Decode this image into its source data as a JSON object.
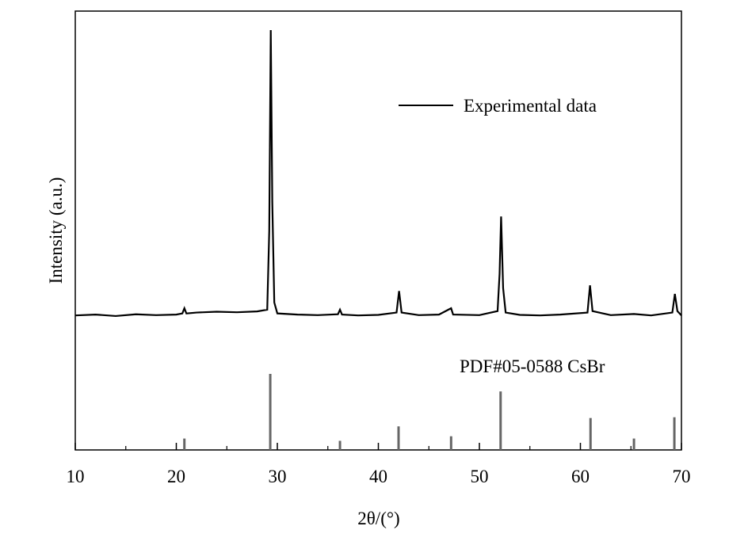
{
  "chart_data": {
    "type": "line",
    "xlabel": "2θ/(°)",
    "ylabel": "Intensity (a.u.)",
    "xlim": [
      10,
      70
    ],
    "xticks": [
      10,
      20,
      30,
      40,
      50,
      60,
      70
    ],
    "series": [
      {
        "name": "Experimental data",
        "color": "#000000",
        "type": "line",
        "x": [
          10,
          12,
          14,
          16,
          18,
          20,
          20.6,
          20.8,
          21.0,
          22,
          24,
          26,
          28,
          29.0,
          29.2,
          29.35,
          29.5,
          29.7,
          30,
          32,
          34,
          36,
          36.2,
          36.4,
          38,
          40,
          41.8,
          42.05,
          42.3,
          44,
          46,
          47.2,
          47.4,
          50,
          51.8,
          52.0,
          52.15,
          52.35,
          52.6,
          54,
          56,
          58,
          60.7,
          60.95,
          61.2,
          63,
          65.3,
          67,
          69.1,
          69.35,
          69.6,
          70
        ],
        "values": [
          0.5,
          0.8,
          0.3,
          0.9,
          0.6,
          0.8,
          1.2,
          3,
          1.2,
          1.5,
          1.8,
          1.6,
          1.9,
          2.5,
          30,
          100,
          40,
          5,
          1.2,
          0.8,
          0.6,
          0.9,
          2.5,
          0.8,
          0.5,
          0.7,
          1.5,
          9,
          1.5,
          0.6,
          0.8,
          3,
          0.8,
          0.6,
          2,
          15,
          35,
          10,
          1.5,
          0.7,
          0.5,
          0.8,
          1.5,
          11,
          2,
          0.6,
          1,
          0.5,
          1.5,
          8,
          2,
          0.5
        ]
      },
      {
        "name": "PDF#05-0588 CsBr",
        "color": "#666666",
        "type": "stick",
        "x": [
          20.8,
          29.3,
          36.2,
          42.0,
          47.2,
          52.1,
          61.0,
          65.3,
          69.3
        ],
        "values": [
          15,
          100,
          12,
          31,
          18,
          77,
          42,
          15,
          43
        ]
      }
    ]
  }
}
